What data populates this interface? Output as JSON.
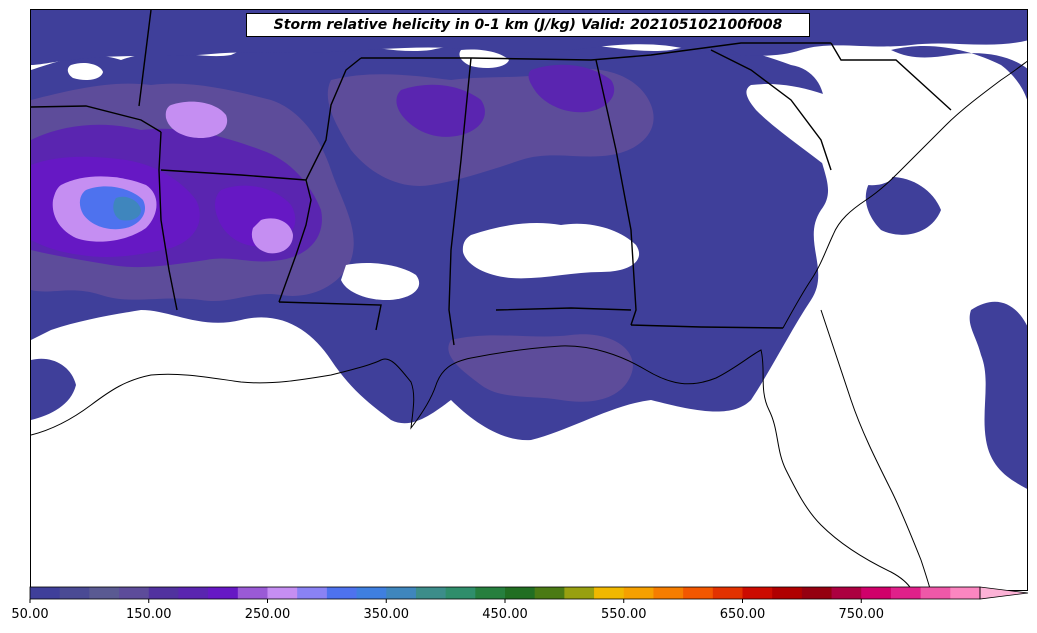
{
  "title": "Storm relative helicity in 0-1 km (J/kg) Valid: 202105102100f008",
  "colorbar": {
    "min": 50,
    "step": 25,
    "extend": "max",
    "tick_labels": [
      "50.00",
      "150.00",
      "250.00",
      "350.00",
      "450.00",
      "550.00",
      "650.00",
      "750.00"
    ],
    "colors": [
      "#3f3f9a",
      "#4a4a94",
      "#5a5a92",
      "#5d4c9a",
      "#51329f",
      "#5a25b0",
      "#6618c4",
      "#9a5ad6",
      "#c58ef2",
      "#8a82f4",
      "#4e72ee",
      "#3f7fe0",
      "#3f86bd",
      "#3c8d8a",
      "#2f8e6b",
      "#267f3e",
      "#216e22",
      "#4a7a14",
      "#98a010",
      "#f0b800",
      "#f5a000",
      "#f57d00",
      "#f25700",
      "#e23200",
      "#cc0b00",
      "#b00000",
      "#950010",
      "#ac0040",
      "#d0006a",
      "#e0208a",
      "#ee58a8",
      "#fb86c0"
    ],
    "extend_color": "#fcb2d6"
  },
  "map": {
    "fill_colors": {
      "light": "#4a4a94",
      "base": "#3f3f9a",
      "mid": "#5d4c9a",
      "strong": "#5a25b0",
      "violet": "#6618c4",
      "lavender": "#c58ef2",
      "pale": "#9a5ad6",
      "blue": "#4e72ee",
      "teal": "#3f86bd"
    }
  }
}
